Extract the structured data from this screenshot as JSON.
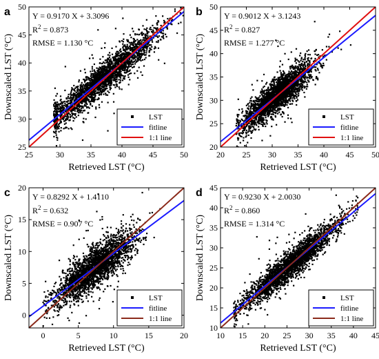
{
  "chart_data": [
    {
      "panel": "a",
      "type": "scatter",
      "xlabel": "Retrieved LST (°C)",
      "ylabel": "Downscaled LST (°C)",
      "xlim": [
        25,
        50
      ],
      "ylim": [
        25,
        50
      ],
      "xticks": [
        25,
        30,
        35,
        40,
        45,
        50
      ],
      "yticks": [
        25,
        30,
        35,
        40,
        45,
        50
      ],
      "stats": [
        "Y = 0.9170 X + 3.3096",
        "R",
        "2",
        " = 0.873",
        "RMSE = 1.130 °C"
      ],
      "fit": {
        "slope": 0.917,
        "intercept": 3.3096
      },
      "cloud": {
        "x_center": 37,
        "x_spread": 4.5,
        "x_min": 29,
        "x_max": 50,
        "noise": 1.4
      },
      "legend": [
        "LST",
        "fitline",
        "1:1 line"
      ],
      "fit_color": "#1a1aff",
      "one_to_one_color": "#e01010"
    },
    {
      "panel": "b",
      "type": "scatter",
      "xlabel": "Retrieved LST (°C)",
      "ylabel": "Downscaled LST (°C)",
      "xlim": [
        20,
        50
      ],
      "ylim": [
        20,
        50
      ],
      "xticks": [
        20,
        25,
        30,
        35,
        40,
        45,
        50
      ],
      "yticks": [
        20,
        25,
        30,
        35,
        40,
        45,
        50
      ],
      "stats": [
        "Y = 0.9012 X + 3.1243",
        "R",
        "2",
        " = 0.827",
        "RMSE = 1.277 °C"
      ],
      "fit": {
        "slope": 0.9012,
        "intercept": 3.1243
      },
      "cloud": {
        "x_center": 31,
        "x_spread": 3.5,
        "x_min": 23,
        "x_max": 48,
        "noise": 1.7
      },
      "legend": [
        "LST",
        "fitline",
        "1:1 line"
      ],
      "fit_color": "#1a1aff",
      "one_to_one_color": "#e01010"
    },
    {
      "panel": "c",
      "type": "scatter",
      "xlabel": "Retrieved LST (°C)",
      "ylabel": "Downscaled LST (°C)",
      "xlim": [
        -2,
        20
      ],
      "ylim": [
        -2,
        20
      ],
      "xticks": [
        0,
        5,
        10,
        15,
        20
      ],
      "yticks": [
        0,
        5,
        10,
        15,
        20
      ],
      "stats": [
        "Y = 0.8292 X + 1.4110",
        "R",
        "2",
        " = 0.632",
        "RMSE = 0.907 °C"
      ],
      "fit": {
        "slope": 0.8292,
        "intercept": 1.411
      },
      "cloud": {
        "x_center": 7.5,
        "x_spread": 2.8,
        "x_min": 0,
        "x_max": 18,
        "noise": 1.5
      },
      "legend": [
        "LST",
        "fitline",
        "1:1 line"
      ],
      "fit_color": "#1a1aff",
      "one_to_one_color": "#8b2a1a"
    },
    {
      "panel": "d",
      "type": "scatter",
      "xlabel": "Retrieved LST (°C)",
      "ylabel": "Downscaled LST (°C)",
      "xlim": [
        10,
        45
      ],
      "ylim": [
        10,
        45
      ],
      "xticks": [
        10,
        15,
        20,
        25,
        30,
        35,
        40,
        45
      ],
      "yticks": [
        10,
        15,
        20,
        25,
        30,
        35,
        40,
        45
      ],
      "stats": [
        "Y = 0.9230 X + 2.0030",
        "R",
        "2",
        " = 0.860",
        "RMSE = 1.314 °C"
      ],
      "fit": {
        "slope": 0.923,
        "intercept": 2.003
      },
      "cloud": {
        "x_center": 26,
        "x_spread": 5.5,
        "x_min": 13,
        "x_max": 41,
        "noise": 1.7
      },
      "legend": [
        "LST",
        "fitline",
        "1:1 line"
      ],
      "fit_color": "#1a1aff",
      "one_to_one_color": "#8b2a1a"
    }
  ]
}
